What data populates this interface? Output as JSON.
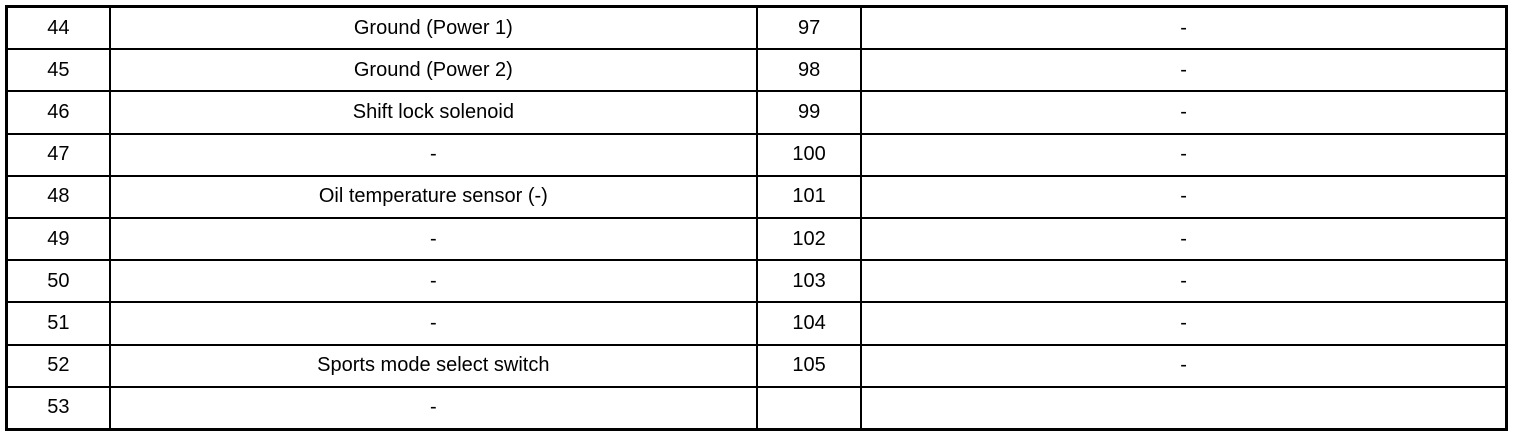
{
  "rows": [
    {
      "pin_a": "44",
      "desc_a": "Ground (Power 1)",
      "pin_b": "97",
      "desc_b": "-"
    },
    {
      "pin_a": "45",
      "desc_a": "Ground (Power 2)",
      "pin_b": "98",
      "desc_b": "-"
    },
    {
      "pin_a": "46",
      "desc_a": "Shift lock solenoid",
      "pin_b": "99",
      "desc_b": "-"
    },
    {
      "pin_a": "47",
      "desc_a": "-",
      "pin_b": "100",
      "desc_b": "-"
    },
    {
      "pin_a": "48",
      "desc_a": "Oil temperature sensor (-)",
      "pin_b": "101",
      "desc_b": "-"
    },
    {
      "pin_a": "49",
      "desc_a": "-",
      "pin_b": "102",
      "desc_b": "-"
    },
    {
      "pin_a": "50",
      "desc_a": "-",
      "pin_b": "103",
      "desc_b": "-"
    },
    {
      "pin_a": "51",
      "desc_a": "-",
      "pin_b": "104",
      "desc_b": "-"
    },
    {
      "pin_a": "52",
      "desc_a": "Sports mode select switch",
      "pin_b": "105",
      "desc_b": "-"
    },
    {
      "pin_a": "53",
      "desc_a": "-",
      "pin_b": "",
      "desc_b": ""
    }
  ]
}
